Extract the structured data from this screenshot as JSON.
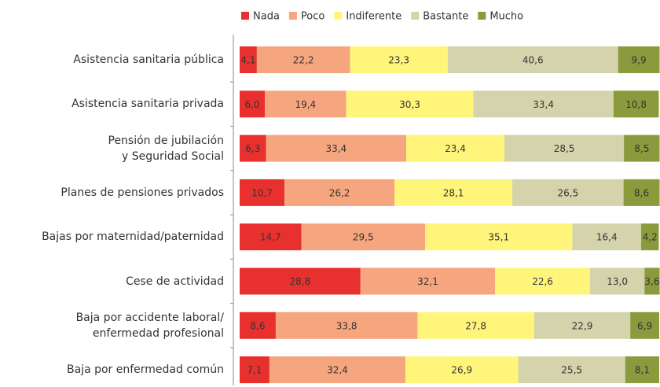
{
  "chart_data": {
    "type": "stacked-barh",
    "categories": [
      "Asistencia sanitaria pública",
      "Asistencia sanitaria privada",
      "Pensión de jubilación\ny Seguridad Social",
      "Planes de pensiones privados",
      "Bajas por maternidad/paternidad",
      "Cese de actividad",
      "Baja por accidente laboral/\nenfermedad profesional",
      "Baja por enfermedad común"
    ],
    "series": [
      {
        "name": "Nada",
        "color": "#e8312f",
        "values": [
          4.1,
          6.0,
          6.3,
          10.7,
          14.7,
          28.8,
          8.6,
          7.1
        ],
        "value_labels": [
          "4,1",
          "6,0",
          "6,3",
          "10,7",
          "14,7",
          "28,8",
          "8,6",
          "7,1"
        ]
      },
      {
        "name": "Poco",
        "color": "#f5a67e",
        "values": [
          22.2,
          19.4,
          33.4,
          26.2,
          29.5,
          32.1,
          33.8,
          32.4
        ],
        "value_labels": [
          "22,2",
          "19,4",
          "33,4",
          "26,2",
          "29,5",
          "32,1",
          "33,8",
          "32,4"
        ]
      },
      {
        "name": "Indiferente",
        "color": "#fff57a",
        "values": [
          23.3,
          30.3,
          23.4,
          28.1,
          35.1,
          22.6,
          27.8,
          26.9
        ],
        "value_labels": [
          "23,3",
          "30,3",
          "23,4",
          "28,1",
          "35,1",
          "22,6",
          "27,8",
          "26,9"
        ]
      },
      {
        "name": "Bastante",
        "color": "#d4d3ac",
        "values": [
          40.6,
          33.4,
          28.5,
          26.5,
          16.4,
          13.0,
          22.9,
          25.5
        ],
        "value_labels": [
          "40,6",
          "33,4",
          "28,5",
          "26,5",
          "16,4",
          "13,0",
          "22,9",
          "25,5"
        ]
      },
      {
        "name": "Mucho",
        "color": "#8a9a3c",
        "values": [
          9.9,
          10.8,
          8.5,
          8.6,
          4.2,
          3.6,
          6.9,
          8.1
        ],
        "value_labels": [
          "9,9",
          "10,8",
          "8,5",
          "8,6",
          "4,2",
          "3,6",
          "6,9",
          "8,1"
        ]
      }
    ],
    "xlim": [
      0,
      100
    ]
  }
}
